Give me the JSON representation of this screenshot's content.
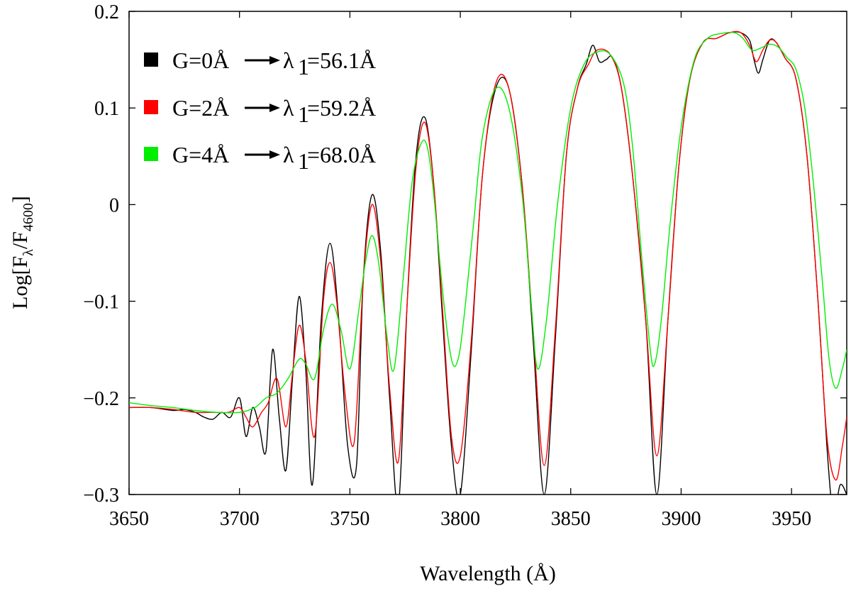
{
  "chart_data": {
    "type": "line",
    "title": "",
    "xlabel": "Wavelength (Å)",
    "ylabel": {
      "prefix": "Log[F",
      "sub1": "λ",
      "mid": "/F",
      "sub2": "4600",
      "suffix": "]"
    },
    "xlim": [
      3650,
      3975
    ],
    "ylim": [
      -0.3,
      0.2
    ],
    "xticks": [
      3650,
      3700,
      3750,
      3800,
      3850,
      3900,
      3950
    ],
    "yticks": [
      -0.3,
      -0.2,
      -0.1,
      0,
      0.1,
      0.2
    ],
    "ytick_labels": [
      "−0.3",
      "−0.2",
      "−0.1",
      "0",
      "0.1",
      "0.2"
    ],
    "grid": false,
    "legend_position": "top-left",
    "series": [
      {
        "name": "G=0Å ⟶ λ1 =56.1Å",
        "legend": {
          "g": "G=0Å",
          "lambda": "λ",
          "sub": "1",
          "value": " =56.1Å"
        },
        "color": "#000000",
        "x": [
          3650,
          3660,
          3670,
          3675,
          3680,
          3684,
          3688,
          3692,
          3696,
          3700,
          3703,
          3706,
          3709,
          3712,
          3715,
          3718,
          3721,
          3724,
          3727,
          3730,
          3733,
          3737,
          3741,
          3745,
          3749,
          3753,
          3756,
          3760,
          3764,
          3768,
          3772,
          3776,
          3780,
          3784,
          3788,
          3792,
          3796,
          3800,
          3805,
          3810,
          3816,
          3822,
          3828,
          3833,
          3838,
          3843,
          3848,
          3853,
          3857,
          3860,
          3863,
          3866,
          3869,
          3873,
          3878,
          3884,
          3889,
          3894,
          3899,
          3904,
          3910,
          3916,
          3922,
          3927,
          3931,
          3933,
          3935,
          3937,
          3940,
          3943,
          3947,
          3952,
          3957,
          3962,
          3966,
          3969,
          3972,
          3975
        ],
        "values": [
          -0.21,
          -0.21,
          -0.213,
          -0.212,
          -0.215,
          -0.22,
          -0.222,
          -0.215,
          -0.22,
          -0.2,
          -0.24,
          -0.21,
          -0.23,
          -0.255,
          -0.15,
          -0.22,
          -0.275,
          -0.18,
          -0.095,
          -0.17,
          -0.29,
          -0.12,
          -0.04,
          -0.12,
          -0.25,
          -0.27,
          -0.08,
          0.01,
          -0.05,
          -0.2,
          -0.31,
          -0.1,
          0.05,
          0.09,
          0.02,
          -0.12,
          -0.25,
          -0.3,
          -0.15,
          0.03,
          0.12,
          0.12,
          0.02,
          -0.14,
          -0.3,
          -0.14,
          0.05,
          0.12,
          0.145,
          0.165,
          0.148,
          0.15,
          0.152,
          0.12,
          0.03,
          -0.12,
          -0.3,
          -0.12,
          0.04,
          0.13,
          0.168,
          0.172,
          0.178,
          0.178,
          0.17,
          0.15,
          0.136,
          0.15,
          0.17,
          0.168,
          0.152,
          0.13,
          0.05,
          -0.1,
          -0.25,
          -0.32,
          -0.29,
          -0.3
        ]
      },
      {
        "name": "G=2Å ⟶ λ1 =59.2Å",
        "legend": {
          "g": "G=2Å",
          "lambda": "λ",
          "sub": "1",
          "value": " =59.2Å"
        },
        "color": "#ff0000",
        "x": [
          3650,
          3660,
          3670,
          3680,
          3688,
          3695,
          3700,
          3703,
          3706,
          3710,
          3713,
          3717,
          3721,
          3724,
          3727,
          3730,
          3734,
          3738,
          3741,
          3744,
          3748,
          3752,
          3756,
          3760,
          3764,
          3768,
          3772,
          3776,
          3780,
          3784,
          3788,
          3792,
          3796,
          3800,
          3805,
          3810,
          3816,
          3822,
          3828,
          3833,
          3838,
          3843,
          3848,
          3853,
          3858,
          3862,
          3868,
          3873,
          3878,
          3884,
          3889,
          3894,
          3899,
          3904,
          3910,
          3916,
          3922,
          3927,
          3931,
          3934,
          3937,
          3940,
          3943,
          3947,
          3952,
          3957,
          3962,
          3966,
          3970,
          3973,
          3975
        ],
        "values": [
          -0.21,
          -0.21,
          -0.212,
          -0.215,
          -0.215,
          -0.215,
          -0.21,
          -0.22,
          -0.23,
          -0.215,
          -0.205,
          -0.18,
          -0.23,
          -0.175,
          -0.125,
          -0.16,
          -0.24,
          -0.1,
          -0.06,
          -0.1,
          -0.2,
          -0.245,
          -0.08,
          0.0,
          -0.06,
          -0.19,
          -0.265,
          -0.1,
          0.04,
          0.085,
          0.02,
          -0.11,
          -0.24,
          -0.26,
          -0.14,
          0.03,
          0.125,
          0.12,
          0.02,
          -0.13,
          -0.27,
          -0.13,
          0.05,
          0.12,
          0.145,
          0.16,
          0.155,
          0.12,
          0.03,
          -0.12,
          -0.26,
          -0.12,
          0.04,
          0.13,
          0.168,
          0.172,
          0.178,
          0.178,
          0.165,
          0.148,
          0.16,
          0.17,
          0.168,
          0.152,
          0.13,
          0.05,
          -0.1,
          -0.24,
          -0.285,
          -0.25,
          -0.22
        ]
      },
      {
        "name": "G=4Å ⟶ λ1 =68.0Å",
        "legend": {
          "g": "G=4Å",
          "lambda": "λ",
          "sub": "1",
          "value": " =68.0Å"
        },
        "color": "#00ee00",
        "x": [
          3650,
          3660,
          3670,
          3680,
          3690,
          3700,
          3707,
          3712,
          3717,
          3722,
          3727,
          3730,
          3734,
          3738,
          3742,
          3746,
          3750,
          3754,
          3757,
          3760,
          3763,
          3767,
          3770,
          3774,
          3778,
          3782,
          3785,
          3788,
          3792,
          3796,
          3799,
          3802,
          3806,
          3810,
          3816,
          3822,
          3828,
          3832,
          3835,
          3839,
          3844,
          3850,
          3856,
          3862,
          3868,
          3874,
          3878,
          3882,
          3886,
          3888,
          3891,
          3895,
          3900,
          3906,
          3912,
          3918,
          3924,
          3928,
          3932,
          3936,
          3940,
          3944,
          3948,
          3952,
          3956,
          3960,
          3964,
          3967,
          3970,
          3973,
          3975
        ],
        "values": [
          -0.205,
          -0.208,
          -0.21,
          -0.213,
          -0.215,
          -0.215,
          -0.21,
          -0.2,
          -0.195,
          -0.18,
          -0.16,
          -0.165,
          -0.18,
          -0.13,
          -0.103,
          -0.13,
          -0.17,
          -0.11,
          -0.06,
          -0.032,
          -0.06,
          -0.14,
          -0.17,
          -0.08,
          0.02,
          0.062,
          0.06,
          0.01,
          -0.09,
          -0.16,
          -0.16,
          -0.11,
          -0.02,
          0.07,
          0.12,
          0.1,
          0.01,
          -0.1,
          -0.17,
          -0.12,
          0.0,
          0.1,
          0.145,
          0.158,
          0.155,
          0.125,
          0.06,
          -0.05,
          -0.15,
          -0.165,
          -0.12,
          -0.02,
          0.08,
          0.15,
          0.172,
          0.177,
          0.178,
          0.172,
          0.16,
          0.162,
          0.166,
          0.163,
          0.152,
          0.14,
          0.1,
          0.02,
          -0.08,
          -0.16,
          -0.19,
          -0.17,
          -0.15
        ]
      }
    ]
  }
}
